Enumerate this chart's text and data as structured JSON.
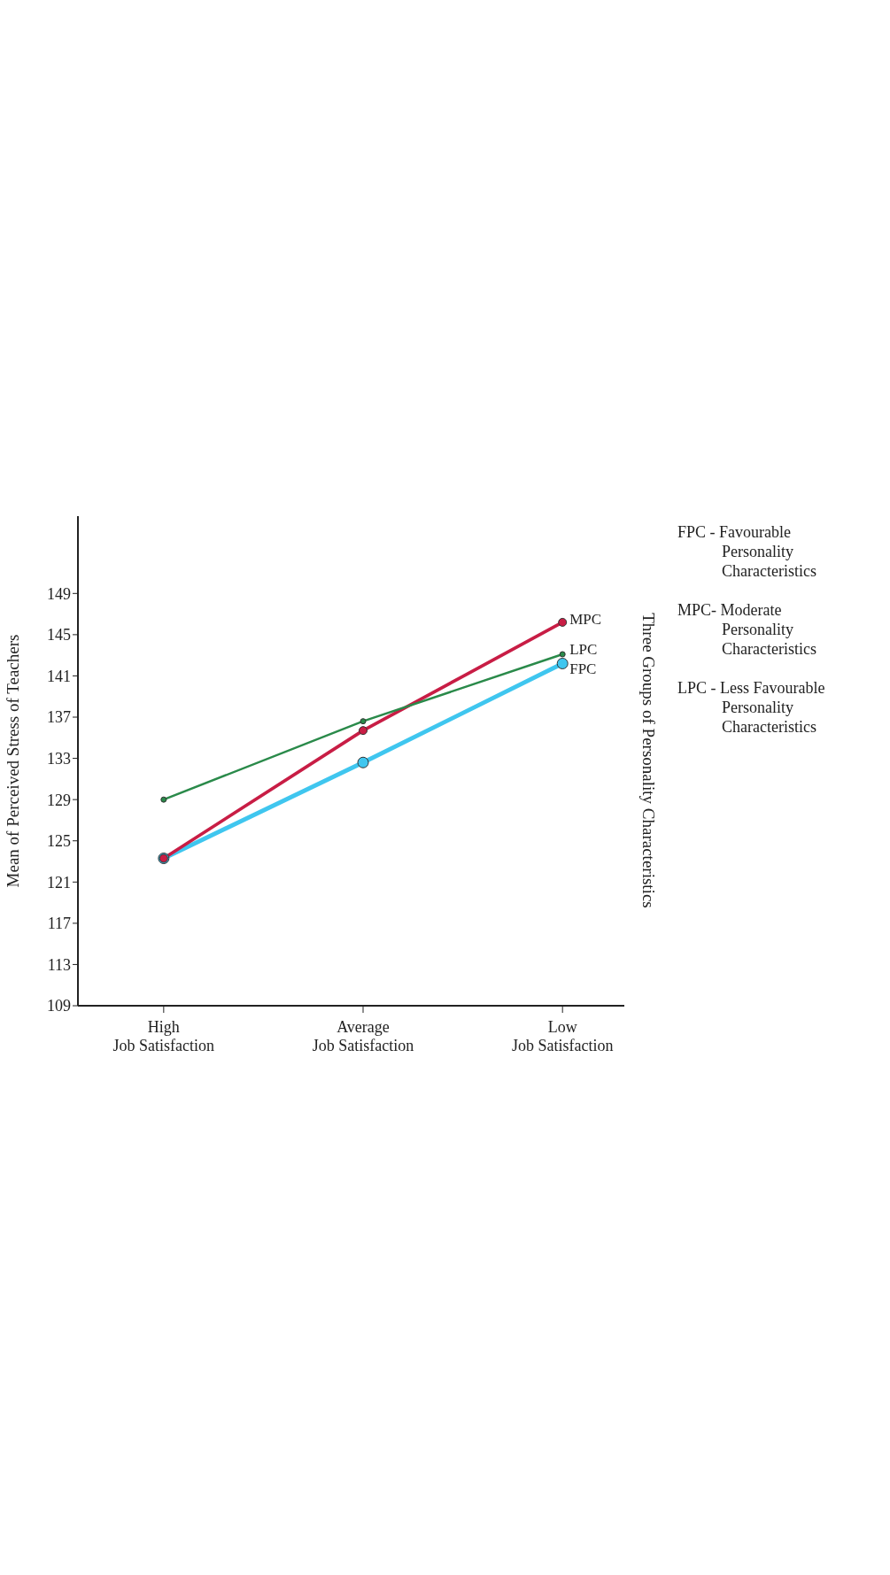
{
  "chart_data": {
    "type": "line",
    "categories": [
      "High Job Satisfaction",
      "Average Job Satisfaction",
      "Low Job Satisfaction"
    ],
    "ylabel": "Mean of Perceived Stress of Teachers",
    "legend_title": "Three Groups of Personality Characteristics",
    "annotations": [
      "FPC - Favourable Personality Characteristics",
      "MPC- Moderate Personality Characteristics",
      "LPC - Less Favourable Personality Characteristics"
    ],
    "series": [
      {
        "name": "FPC",
        "color": "#3fc6ef",
        "values": [
          123.3,
          132.6,
          142.2
        ]
      },
      {
        "name": "MPC",
        "color": "#c81d45",
        "values": [
          123.3,
          135.7,
          146.2
        ]
      },
      {
        "name": "LPC",
        "color": "#2a8a4a",
        "values": [
          129.0,
          136.6,
          143.1
        ]
      }
    ],
    "ylim": [
      109,
      156.5
    ],
    "yticks": [
      109,
      113,
      117,
      121,
      125,
      129,
      133,
      137,
      141,
      145,
      149
    ],
    "marker": "circle"
  }
}
